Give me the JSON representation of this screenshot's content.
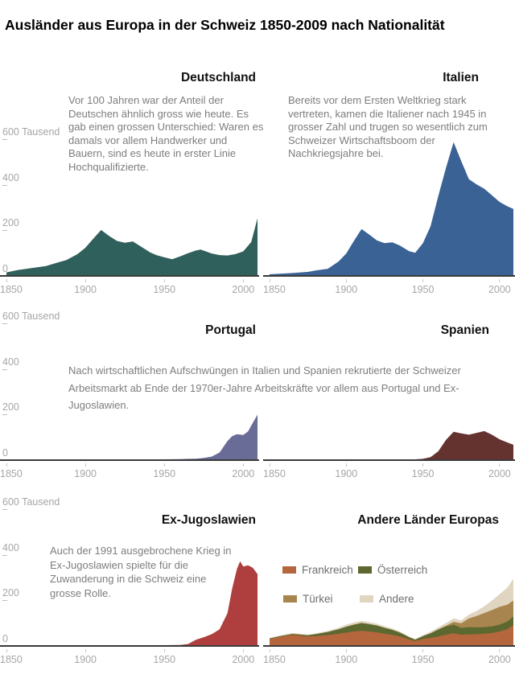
{
  "header": {
    "title": "Ausländer aus Europa in der Schweiz 1850-2009 nach Nationalität"
  },
  "descriptions": {
    "deutschland": "Vor 100 Jahren war der Anteil der Deutschen ähnlich gross wie heute. Es gab einen grossen Unterschied: Waren es damals vor allem Handwerker und Bauern, sind es heute in erster Linie Hochqualifizierte.",
    "italien": "Bereits vor dem Ersten Weltkrieg stark vertreten, kamen die Italiener nach 1945 in grosser Zahl und trugen so wesentlich zum Schweizer Wirtschaftsboom der Nachkriegsjahre bei.",
    "portugal_spanien": "Nach wirtschaftlichen Aufschwüngen in Italien und Spanien rekrutierte der Schweizer Arbeitsmarkt ab Ende der 1970er-Jahre Arbeitskräfte vor allem aus Portugal und Ex-Jugoslawien.",
    "ex_jugoslawien": "Auch der 1991 ausgebrochene Krieg in Ex-Jugoslawien spielte für die Zuwanderung in die Schweiz eine grosse Rolle."
  },
  "x_axis": {
    "tick_years": [
      1850,
      1900,
      1950,
      2000
    ],
    "tick_labels": [
      "1850",
      "1900",
      "1950",
      "2000"
    ]
  },
  "y_axis": {
    "tick_values": [
      600,
      400,
      200,
      0
    ],
    "tick_labels": [
      "600 Tausend",
      "400",
      "200",
      "0"
    ],
    "unit": "Tausend"
  },
  "chart_data": [
    {
      "id": "deutschland",
      "type": "area",
      "title": "Deutschland",
      "color": "#30605b",
      "ylabel": "Tausend",
      "xlim": [
        1850,
        2009
      ],
      "ylim": [
        0,
        600
      ],
      "show_y_axis": true,
      "x": [
        1850,
        1857,
        1865,
        1875,
        1880,
        1888,
        1895,
        1900,
        1905,
        1910,
        1915,
        1920,
        1925,
        1930,
        1935,
        1941,
        1945,
        1950,
        1955,
        1960,
        1965,
        1970,
        1973,
        1980,
        1985,
        1990,
        1995,
        2000,
        2005,
        2009
      ],
      "values": [
        12,
        22,
        30,
        40,
        50,
        66,
        92,
        120,
        160,
        198,
        172,
        150,
        142,
        148,
        126,
        100,
        88,
        78,
        70,
        82,
        96,
        108,
        112,
        95,
        88,
        86,
        92,
        104,
        145,
        250
      ]
    },
    {
      "id": "italien",
      "type": "area",
      "title": "Italien",
      "color": "#3a6295",
      "ylabel": "Tausend",
      "xlim": [
        1850,
        2009
      ],
      "ylim": [
        0,
        600
      ],
      "show_y_axis": false,
      "x": [
        1850,
        1857,
        1865,
        1875,
        1880,
        1888,
        1895,
        1900,
        1905,
        1910,
        1915,
        1920,
        1925,
        1930,
        1935,
        1941,
        1945,
        1950,
        1955,
        1960,
        1965,
        1970,
        1975,
        1980,
        1985,
        1990,
        1995,
        2000,
        2005,
        2009
      ],
      "values": [
        4,
        6,
        9,
        14,
        20,
        28,
        60,
        95,
        150,
        202,
        178,
        152,
        140,
        144,
        130,
        105,
        98,
        140,
        215,
        346,
        470,
        583,
        500,
        421,
        398,
        379,
        350,
        321,
        302,
        290
      ]
    },
    {
      "id": "portugal",
      "type": "area",
      "title": "Portugal",
      "color": "#696c97",
      "ylabel": "Tausend",
      "xlim": [
        1850,
        2009
      ],
      "ylim": [
        0,
        600
      ],
      "show_y_axis": true,
      "x": [
        1850,
        1900,
        1950,
        1960,
        1965,
        1970,
        1975,
        1980,
        1985,
        1990,
        1993,
        1996,
        2000,
        2003,
        2006,
        2009
      ],
      "values": [
        0,
        0,
        0,
        1,
        2,
        3,
        6,
        12,
        30,
        80,
        102,
        110,
        107,
        122,
        160,
        196
      ]
    },
    {
      "id": "spanien",
      "type": "area",
      "title": "Spanien",
      "color": "#643330",
      "ylabel": "Tausend",
      "xlim": [
        1850,
        2009
      ],
      "ylim": [
        0,
        600
      ],
      "show_y_axis": false,
      "x": [
        1850,
        1900,
        1945,
        1950,
        1955,
        1960,
        1965,
        1970,
        1975,
        1980,
        1985,
        1990,
        1995,
        2000,
        2005,
        2009
      ],
      "values": [
        0,
        0,
        0,
        2,
        10,
        35,
        85,
        121,
        114,
        108,
        116,
        124,
        108,
        88,
        74,
        64
      ]
    },
    {
      "id": "ex_jugoslawien",
      "type": "area",
      "title": "Ex-Jugoslawien",
      "color": "#ae3f3e",
      "ylabel": "Tausend",
      "xlim": [
        1850,
        2009
      ],
      "ylim": [
        0,
        600
      ],
      "show_y_axis": true,
      "x": [
        1850,
        1900,
        1950,
        1960,
        1965,
        1970,
        1975,
        1980,
        1985,
        1990,
        1993,
        1996,
        1998,
        2000,
        2003,
        2006,
        2009
      ],
      "values": [
        0,
        0,
        0,
        1,
        5,
        24,
        35,
        48,
        70,
        140,
        250,
        335,
        368,
        345,
        350,
        340,
        312
      ]
    },
    {
      "id": "andere",
      "type": "area-stacked",
      "title": "Andere Länder Europas",
      "ylabel": "Tausend",
      "xlim": [
        1850,
        2009
      ],
      "ylim": [
        0,
        600
      ],
      "show_y_axis": false,
      "legend_position": "top-left",
      "x": [
        1850,
        1857,
        1865,
        1875,
        1880,
        1888,
        1895,
        1900,
        1905,
        1910,
        1915,
        1920,
        1925,
        1930,
        1935,
        1941,
        1945,
        1950,
        1955,
        1960,
        1965,
        1970,
        1975,
        1980,
        1985,
        1990,
        1995,
        2000,
        2005,
        2009
      ],
      "series": [
        {
          "name": "Frankreich",
          "color": "#b5663c",
          "values": [
            27,
            36,
            45,
            38,
            40,
            44,
            50,
            55,
            60,
            63,
            60,
            56,
            50,
            45,
            38,
            25,
            18,
            27,
            32,
            38,
            46,
            52,
            46,
            47,
            48,
            50,
            53,
            60,
            70,
            88
          ]
        },
        {
          "name": "Österreich",
          "color": "#5c682f",
          "values": [
            2,
            3,
            4,
            5,
            8,
            14,
            20,
            26,
            30,
            34,
            32,
            30,
            26,
            22,
            17,
            10,
            6,
            12,
            20,
            30,
            36,
            38,
            30,
            32,
            30,
            29,
            29,
            30,
            33,
            38
          ]
        },
        {
          "name": "Türkei",
          "color": "#a8854e",
          "values": [
            0,
            0,
            0,
            0,
            0,
            0,
            0,
            0,
            0,
            0,
            0,
            0,
            0,
            0,
            0,
            0,
            0,
            0,
            0,
            1,
            3,
            12,
            20,
            38,
            50,
            62,
            72,
            78,
            74,
            70
          ]
        },
        {
          "name": "Andere",
          "color": "#e0d5c0",
          "values": [
            3,
            4,
            5,
            4,
            4,
            5,
            7,
            9,
            10,
            10,
            9,
            8,
            7,
            6,
            5,
            3,
            3,
            5,
            7,
            9,
            12,
            15,
            13,
            17,
            22,
            30,
            42,
            55,
            75,
            95
          ]
        }
      ]
    }
  ]
}
